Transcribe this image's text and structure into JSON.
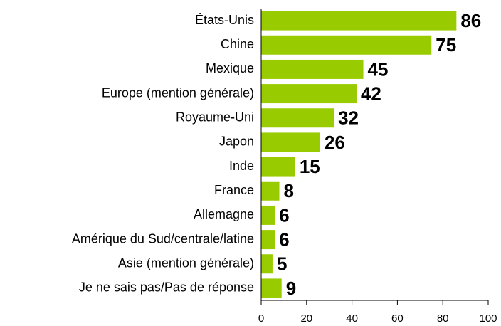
{
  "chart_data": {
    "type": "barh",
    "categories": [
      "États-Unis",
      "Chine",
      "Mexique",
      "Europe (mention générale)",
      "Royaume-Uni",
      "Japon",
      "Inde",
      "France",
      "Allemagne",
      "Amérique du Sud/centrale/latine",
      "Asie (mention générale)",
      "Je ne sais pas/Pas de réponse"
    ],
    "values": [
      86,
      75,
      45,
      42,
      32,
      26,
      15,
      8,
      6,
      6,
      5,
      9
    ],
    "color": "#99cc00",
    "xlim": [
      0,
      100
    ],
    "xticks": [
      0,
      20,
      40,
      60,
      80,
      100
    ]
  }
}
